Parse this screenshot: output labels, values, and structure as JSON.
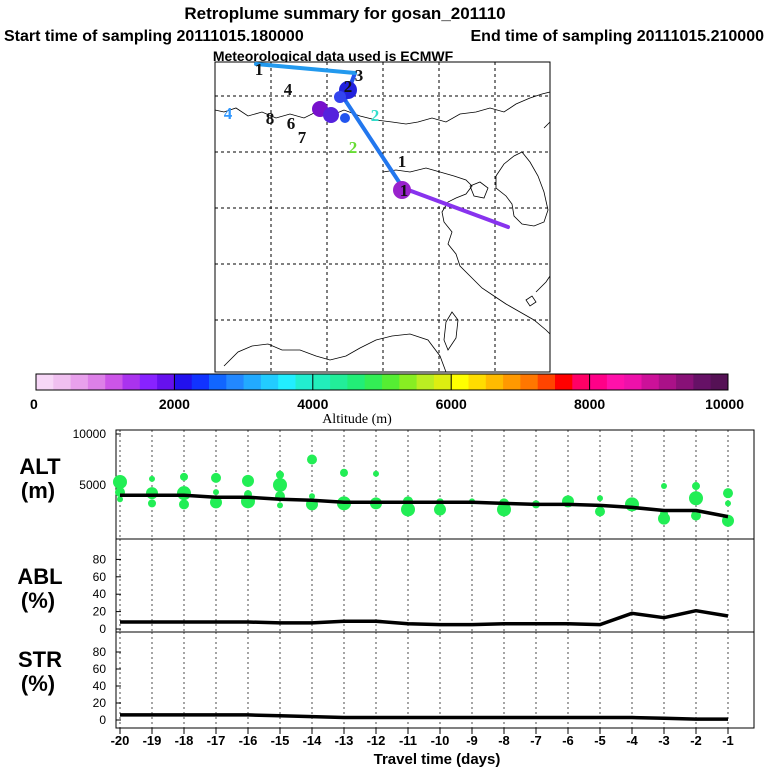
{
  "chart_data": {
    "type": "line",
    "title": "Retroplume summary for gosan_201110",
    "start_label": "Start time of sampling 20111015.180000",
    "end_label": "End time of sampling 20111015.210000",
    "met_label": "Meteorological data used is ECMWF",
    "map": {
      "numbers": [
        {
          "t": "1",
          "c": "#111111"
        },
        {
          "t": "4",
          "c": "#111111"
        },
        {
          "t": "3",
          "c": "#111111"
        },
        {
          "t": "4",
          "c": "#3399ff"
        },
        {
          "t": "8",
          "c": "#111111"
        },
        {
          "t": "6",
          "c": "#111111"
        },
        {
          "t": "7",
          "c": "#111111"
        },
        {
          "t": "2",
          "c": "#111111"
        },
        {
          "t": "2",
          "c": "#33ddcc"
        },
        {
          "t": "2",
          "c": "#66dd33"
        },
        {
          "t": "1",
          "c": "#111111"
        },
        {
          "t": "1",
          "c": "#111111"
        }
      ]
    },
    "colorbar": {
      "ticks": [
        "0",
        "2000",
        "4000",
        "6000",
        "8000",
        "10000"
      ],
      "label": "Altitude (m)",
      "colors": [
        "#f7d7f7",
        "#f0c0f0",
        "#e8a0ec",
        "#dd80e8",
        "#cc55e8",
        "#aa33ee",
        "#8822ff",
        "#6611ee",
        "#2211ee",
        "#1133ff",
        "#1166ff",
        "#2288ff",
        "#22aaff",
        "#22ccff",
        "#22eeff",
        "#22eed0",
        "#22eebb",
        "#22ee99",
        "#22ee77",
        "#33ee55",
        "#55ee33",
        "#88ee22",
        "#bbee22",
        "#ddee11",
        "#ffff00",
        "#ffdd00",
        "#ffbb00",
        "#ff9900",
        "#ff7700",
        "#ff4400",
        "#ff0000",
        "#ff0066",
        "#ff0088",
        "#ff11aa",
        "#ee11aa",
        "#cc1199",
        "#aa1188",
        "#881177",
        "#661166",
        "#551155"
      ]
    },
    "x": [
      -20,
      -19,
      -18,
      -17,
      -16,
      -15,
      -14,
      -13,
      -12,
      -11,
      -10,
      -9,
      -8,
      -7,
      -6,
      -5,
      -4,
      -3,
      -2,
      -1
    ],
    "x_ticks": [
      "-20",
      "-19",
      "-18",
      "-17",
      "-16",
      "-15",
      "-14",
      "-13",
      "-12",
      "-11",
      "-10",
      "-9",
      "-8",
      "-7",
      "-6",
      "-5",
      "-4",
      "-3",
      "-2",
      "-1"
    ],
    "xlabel": "Travel time (days)",
    "panels": [
      {
        "name_line1": "ALT",
        "name_line2": "(m)",
        "ylim": [
          0,
          10000
        ],
        "y_ticks": [
          "5000",
          "10000"
        ],
        "y_tick_values": [
          5000,
          10000
        ],
        "series": [
          {
            "name": "ALT mean",
            "values": [
              4000,
              4000,
              4000,
              3800,
              3800,
              3600,
              3500,
              3300,
              3300,
              3300,
              3300,
              3300,
              3200,
              3100,
              3100,
              3000,
              2800,
              2500,
              2500,
              1900
            ]
          }
        ],
        "scatter": [
          [
            -20,
            3600
          ],
          [
            -20,
            4300
          ],
          [
            -20,
            5300
          ],
          [
            -19,
            3200
          ],
          [
            -19,
            4200
          ],
          [
            -19,
            5600
          ],
          [
            -18,
            3100
          ],
          [
            -18,
            4200
          ],
          [
            -18,
            5800
          ],
          [
            -17,
            3300
          ],
          [
            -17,
            4300
          ],
          [
            -17,
            5700
          ],
          [
            -16,
            3400
          ],
          [
            -16,
            4100
          ],
          [
            -16,
            5400
          ],
          [
            -15,
            3000
          ],
          [
            -15,
            3900
          ],
          [
            -15,
            5000
          ],
          [
            -15,
            6000
          ],
          [
            -14,
            3100
          ],
          [
            -14,
            3900
          ],
          [
            -14,
            7500
          ],
          [
            -13,
            3200
          ],
          [
            -13,
            6200
          ],
          [
            -12,
            3200
          ],
          [
            -12,
            6100
          ],
          [
            -11,
            3400
          ],
          [
            -11,
            2600
          ],
          [
            -10,
            3300
          ],
          [
            -10,
            2600
          ],
          [
            -9,
            3400
          ],
          [
            -8,
            3200
          ],
          [
            -8,
            2600
          ],
          [
            -7,
            3100
          ],
          [
            -6,
            3400
          ],
          [
            -5,
            3700
          ],
          [
            -5,
            2400
          ],
          [
            -4,
            3100
          ],
          [
            -3,
            2200
          ],
          [
            -3,
            1700
          ],
          [
            -3,
            4900
          ],
          [
            -2,
            2000
          ],
          [
            -2,
            3700
          ],
          [
            -2,
            4900
          ],
          [
            -1,
            1500
          ],
          [
            -1,
            3200
          ],
          [
            -1,
            4200
          ]
        ]
      },
      {
        "name_line1": "ABL",
        "name_line2": "(%)",
        "ylim": [
          0,
          100
        ],
        "y_ticks": [
          "0",
          "20",
          "40",
          "60",
          "80"
        ],
        "y_tick_values": [
          0,
          20,
          40,
          60,
          80
        ],
        "series": [
          {
            "name": "ABL fraction",
            "values": [
              8,
              8,
              8,
              8,
              8,
              7,
              7,
              9,
              9,
              6,
              5,
              5,
              6,
              6,
              6,
              5,
              18,
              13,
              21,
              15
            ]
          }
        ]
      },
      {
        "name_line1": "STR",
        "name_line2": "(%)",
        "ylim": [
          0,
          100
        ],
        "y_ticks": [
          "0",
          "20",
          "40",
          "60",
          "80"
        ],
        "y_tick_values": [
          0,
          20,
          40,
          60,
          80
        ],
        "series": [
          {
            "name": "STR fraction",
            "values": [
              6,
              6,
              6,
              6,
              6,
              5,
              4,
              3,
              3,
              3,
              3,
              3,
              3,
              3,
              3,
              3,
              3,
              2,
              1,
              1
            ]
          }
        ]
      }
    ]
  }
}
